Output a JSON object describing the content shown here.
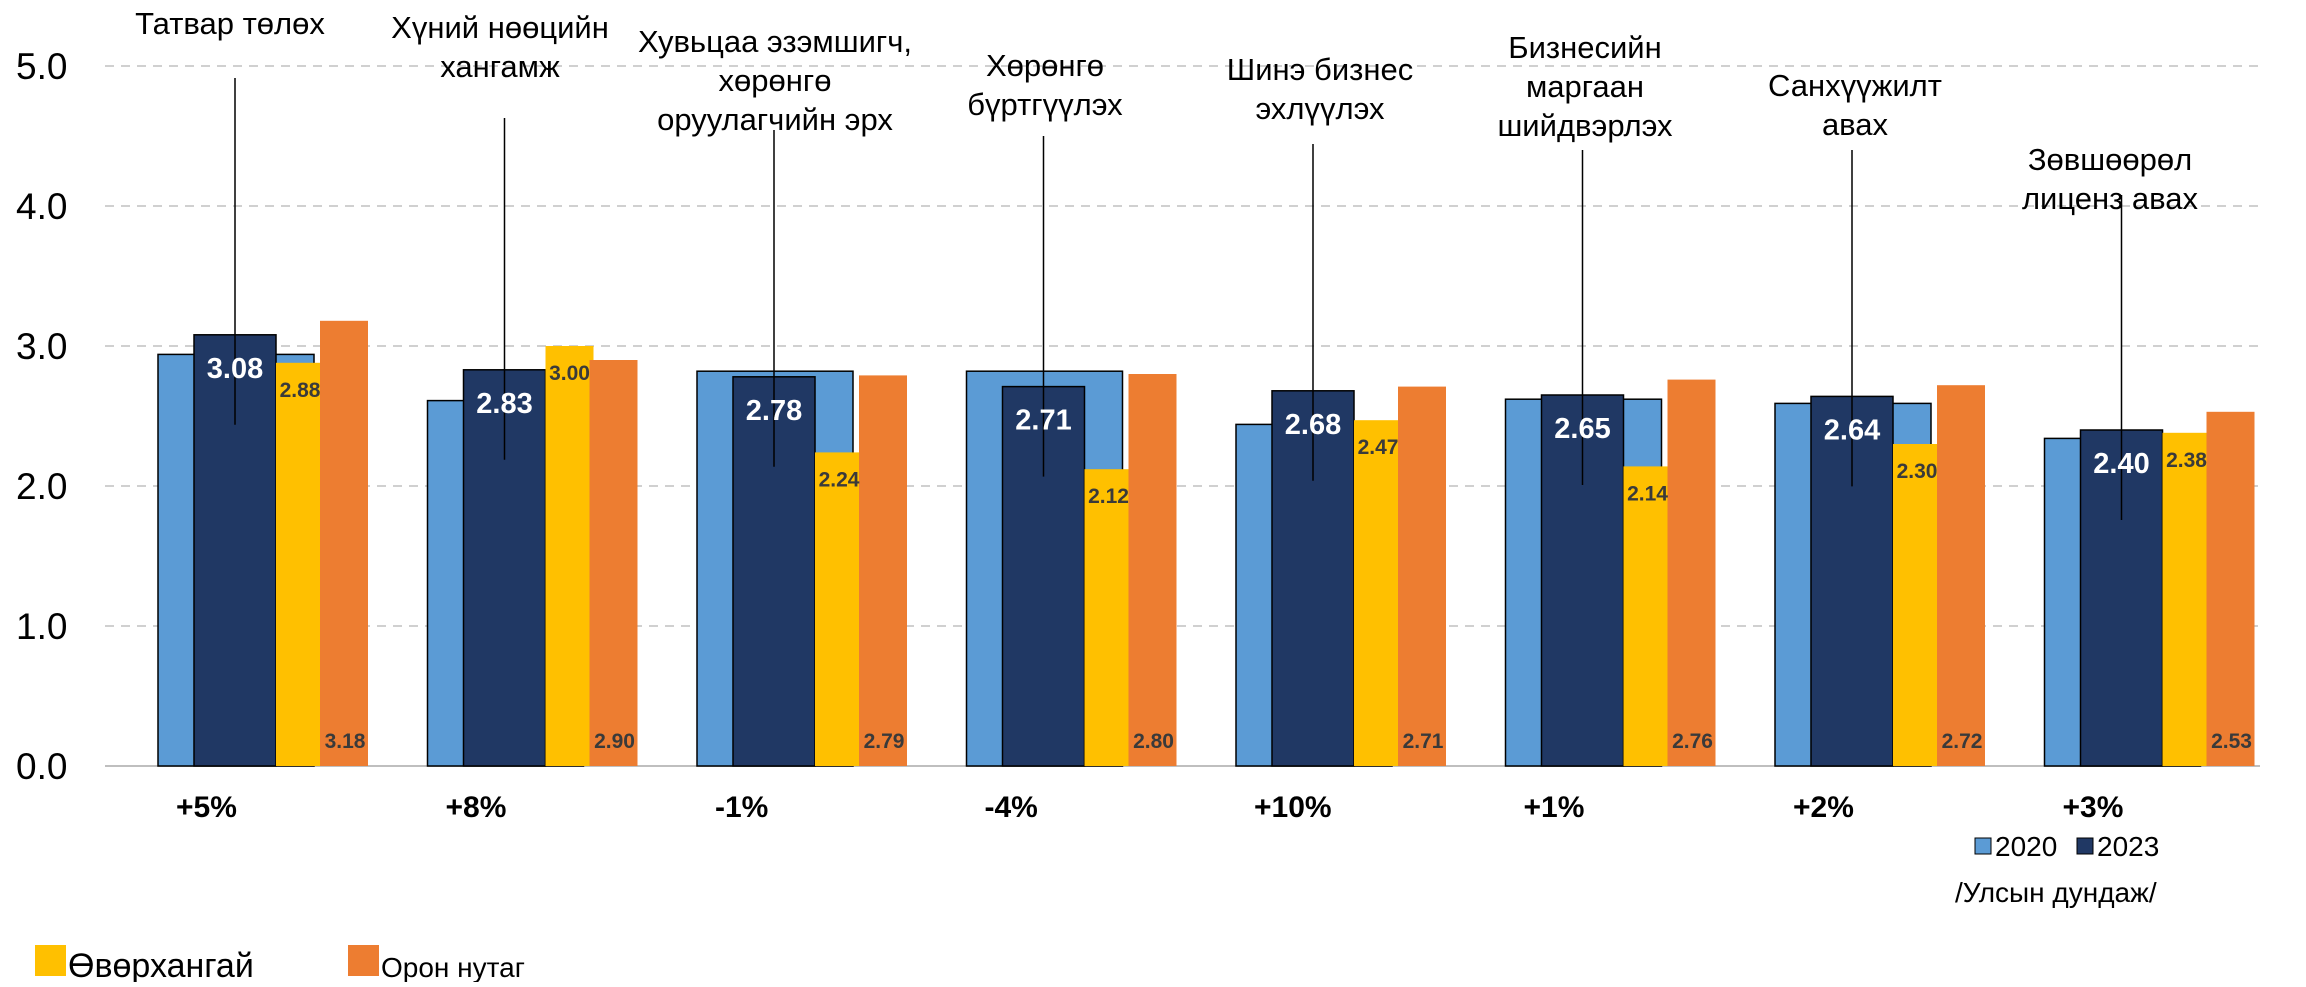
{
  "chart_data": {
    "type": "bar",
    "categories": [
      "Татвар төлөх",
      "Хүний нөөцийн хангамж",
      "Хувьцаа эзэмшигч, хөрөнгө оруулагчийн эрх",
      "Хөрөнгө бүртгүүлэх",
      "Шинэ бизнес эхлүүлэх",
      "Бизнесийн маргаан шийдвэрлэх",
      "Санхүүжилт авах",
      "Зөвшөөрөл лиценз авах"
    ],
    "category_lines": [
      [
        "Татвар төлөх"
      ],
      [
        "Хүний нөөцийн",
        "хангамж"
      ],
      [
        "Хувьцаа эзэмшигч,",
        "хөрөнгө",
        "оруулагчийн эрх"
      ],
      [
        "Хөрөнгө",
        "бүртгүүлэх"
      ],
      [
        "Шинэ бизнес",
        "эхлүүлэх"
      ],
      [
        "Бизнесийн",
        "маргаан",
        "шийдвэрлэх"
      ],
      [
        "Санхүүжилт",
        "авах"
      ],
      [
        "Зөвшөөрөл",
        "лиценз авах"
      ]
    ],
    "series": [
      {
        "name": "2020",
        "values": [
          2.94,
          2.61,
          2.82,
          2.82,
          2.44,
          2.62,
          2.59,
          2.34
        ],
        "color": "#5b9bd5"
      },
      {
        "name": "2023",
        "values": [
          3.08,
          2.83,
          2.78,
          2.71,
          2.68,
          2.65,
          2.64,
          2.4
        ],
        "color": "#203864"
      },
      {
        "name": "Өвөрхангай",
        "values": [
          2.88,
          3.0,
          2.24,
          2.12,
          2.47,
          2.14,
          2.3,
          2.38
        ],
        "color": "#ffc000"
      },
      {
        "name": "Орон нутаг",
        "values": [
          3.18,
          2.9,
          2.79,
          2.8,
          2.71,
          2.76,
          2.72,
          2.53
        ],
        "color": "#ed7d31"
      }
    ],
    "value_labels_2023": [
      "3.08",
      "2.83",
      "2.78",
      "2.71",
      "2.68",
      "2.65",
      "2.64",
      "2.40"
    ],
    "value_labels_region": [
      "2.88",
      "3.00",
      "2.24",
      "2.12",
      "2.47",
      "2.14",
      "2.30",
      "2.38"
    ],
    "value_labels_local": [
      "3.18",
      "2.90",
      "2.79",
      "2.80",
      "2.71",
      "2.76",
      "2.72",
      "2.53"
    ],
    "changes": [
      "+5%",
      "+8%",
      "-1%",
      "-4%",
      "+10%",
      "+1%",
      "+2%",
      "+3%"
    ],
    "y_ticks": [
      "0.0",
      "1.0",
      "2.0",
      "3.0",
      "4.0",
      "5.0"
    ],
    "ylim": [
      0,
      5
    ],
    "grid": true,
    "legend": {
      "national_items": [
        "2020",
        "2023"
      ],
      "national_caption": "/Улсын дундаж/",
      "region_label": "Өвөрхангай",
      "local_label": "Орон нутаг",
      "placement": "bottom"
    }
  }
}
